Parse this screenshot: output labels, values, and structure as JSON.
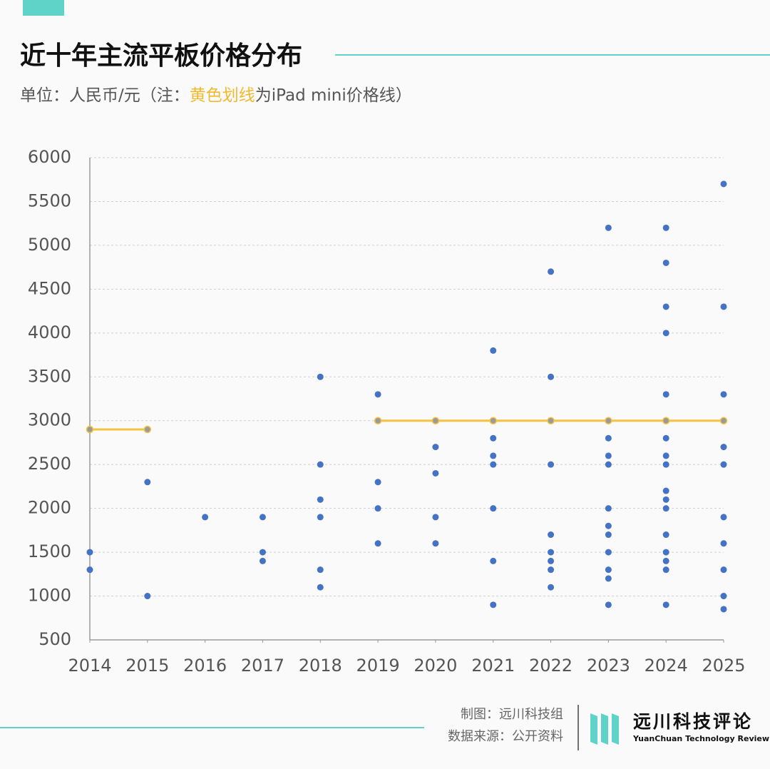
{
  "chart_data": {
    "type": "scatter",
    "title": "近十年主流平板价格分布",
    "subtitle_parts": [
      "单位：人民币/元（注：",
      "黄色划线",
      "为iPad mini价格线）"
    ],
    "subtitle_highlight_color": "#f2b92f",
    "xlim": [
      2014,
      2025
    ],
    "xticks": [
      2014,
      2015,
      2016,
      2017,
      2018,
      2019,
      2020,
      2021,
      2022,
      2023,
      2024,
      2025
    ],
    "ylim": [
      500,
      6000
    ],
    "yticks": [
      500,
      1000,
      1500,
      2000,
      2500,
      3000,
      3500,
      4000,
      4500,
      5000,
      5500,
      6000
    ],
    "grid": true,
    "series": [
      {
        "type": "scatter",
        "color": "#4472c4",
        "x": [
          2014,
          2014,
          2015,
          2015,
          2016,
          2017,
          2017,
          2017,
          2018,
          2018,
          2018,
          2018,
          2018,
          2018,
          2019,
          2019,
          2019,
          2019,
          2020,
          2020,
          2020,
          2020,
          2021,
          2021,
          2021,
          2021,
          2021,
          2021,
          2021,
          2022,
          2022,
          2022,
          2022,
          2022,
          2022,
          2022,
          2022,
          2023,
          2023,
          2023,
          2023,
          2023,
          2023,
          2023,
          2023,
          2023,
          2023,
          2023,
          2024,
          2024,
          2024,
          2024,
          2024,
          2024,
          2024,
          2024,
          2024,
          2024,
          2024,
          2024,
          2024,
          2024,
          2024,
          2024,
          2025,
          2025,
          2025,
          2025,
          2025,
          2025,
          2025,
          2025,
          2025,
          2025
        ],
        "values": [
          1500,
          1300,
          2300,
          1000,
          1900,
          1900,
          1500,
          1400,
          3500,
          2500,
          2100,
          1900,
          1300,
          1100,
          3300,
          2300,
          2000,
          1600,
          2700,
          2400,
          1900,
          1600,
          3800,
          2800,
          2600,
          2500,
          2000,
          1400,
          900,
          4700,
          3500,
          2500,
          1700,
          1500,
          1400,
          1300,
          1100,
          5200,
          2800,
          2600,
          2500,
          2000,
          1800,
          1700,
          1500,
          1300,
          1200,
          900,
          5200,
          4800,
          4300,
          4000,
          3300,
          2800,
          2600,
          2500,
          2200,
          2100,
          2000,
          1700,
          1500,
          1400,
          1300,
          900,
          5700,
          4300,
          3300,
          2700,
          2500,
          1900,
          1600,
          1300,
          1000,
          850
        ]
      },
      {
        "type": "line",
        "color": "#f5c242",
        "marker_fill": "#9a9a9a",
        "x": [
          2014,
          2015,
          2016,
          2017,
          2018,
          2019,
          2020,
          2021,
          2022,
          2023,
          2024,
          2025
        ],
        "values": [
          2900,
          2900,
          null,
          null,
          null,
          3000,
          3000,
          3000,
          3000,
          3000,
          3000,
          3000
        ]
      }
    ],
    "footer": {
      "credit": "制图：远川科技组",
      "source": "数据来源：公开资料",
      "brand": "远川科技评论",
      "brand_en": "YuanChuan Technology Review"
    }
  }
}
